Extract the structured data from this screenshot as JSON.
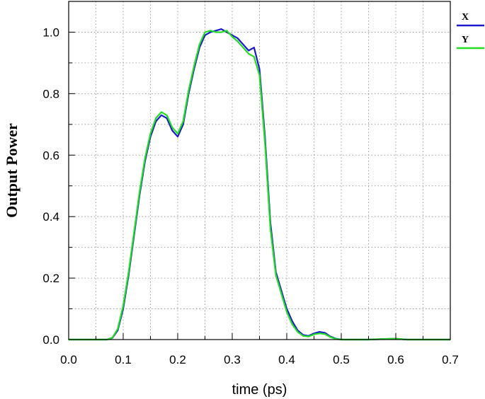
{
  "chart_data": {
    "type": "line",
    "title": "",
    "xlabel": "time (ps)",
    "ylabel": "Output Power",
    "xlim": [
      0,
      0.7
    ],
    "ylim": [
      0,
      1.1
    ],
    "grid": true,
    "legend_position": "top-right",
    "x_ticks": [
      "0.0",
      "0.1",
      "0.2",
      "0.3",
      "0.4",
      "0.5",
      "0.6",
      "0.7"
    ],
    "y_ticks": [
      "0.0",
      "0.2",
      "0.4",
      "0.6",
      "0.8",
      "1.0"
    ],
    "series": [
      {
        "name": "X",
        "color": "#1a1acc",
        "x": [
          0,
          0.07,
          0.08,
          0.09,
          0.1,
          0.11,
          0.12,
          0.13,
          0.14,
          0.15,
          0.16,
          0.17,
          0.18,
          0.19,
          0.2,
          0.21,
          0.22,
          0.23,
          0.24,
          0.25,
          0.26,
          0.27,
          0.28,
          0.29,
          0.3,
          0.31,
          0.32,
          0.33,
          0.34,
          0.35,
          0.36,
          0.37,
          0.38,
          0.39,
          0.4,
          0.41,
          0.42,
          0.43,
          0.44,
          0.45,
          0.46,
          0.47,
          0.48,
          0.49,
          0.5,
          0.51,
          0.55,
          0.58,
          0.6,
          0.62,
          0.65,
          0.7
        ],
        "y": [
          0.0,
          0.0,
          0.005,
          0.03,
          0.1,
          0.21,
          0.34,
          0.47,
          0.58,
          0.66,
          0.71,
          0.73,
          0.72,
          0.68,
          0.66,
          0.7,
          0.8,
          0.88,
          0.95,
          0.99,
          1.0,
          1.005,
          1.01,
          1.0,
          0.99,
          0.98,
          0.96,
          0.94,
          0.95,
          0.88,
          0.66,
          0.38,
          0.22,
          0.16,
          0.1,
          0.06,
          0.03,
          0.015,
          0.012,
          0.02,
          0.025,
          0.022,
          0.01,
          0.003,
          0.0,
          0.0,
          0.0,
          0.002,
          0.003,
          0.0,
          0.0,
          0.0
        ]
      },
      {
        "name": "Y",
        "color": "#22dd22",
        "x": [
          0,
          0.07,
          0.08,
          0.09,
          0.1,
          0.11,
          0.12,
          0.13,
          0.14,
          0.15,
          0.16,
          0.17,
          0.18,
          0.19,
          0.2,
          0.21,
          0.22,
          0.23,
          0.24,
          0.25,
          0.26,
          0.27,
          0.28,
          0.29,
          0.3,
          0.31,
          0.32,
          0.33,
          0.34,
          0.35,
          0.36,
          0.37,
          0.38,
          0.39,
          0.4,
          0.41,
          0.42,
          0.43,
          0.44,
          0.45,
          0.46,
          0.47,
          0.48,
          0.49,
          0.5,
          0.51,
          0.55,
          0.58,
          0.6,
          0.62,
          0.65,
          0.7
        ],
        "y": [
          0.0,
          0.0,
          0.006,
          0.035,
          0.11,
          0.22,
          0.35,
          0.48,
          0.59,
          0.67,
          0.72,
          0.74,
          0.73,
          0.69,
          0.67,
          0.71,
          0.81,
          0.89,
          0.96,
          1.0,
          1.005,
          1.0,
          1.0,
          1.005,
          0.985,
          0.97,
          0.95,
          0.93,
          0.92,
          0.86,
          0.64,
          0.36,
          0.21,
          0.15,
          0.09,
          0.05,
          0.025,
          0.012,
          0.01,
          0.017,
          0.02,
          0.018,
          0.008,
          0.002,
          0.0,
          0.0,
          0.0,
          0.002,
          0.003,
          0.0,
          0.0,
          0.0
        ]
      }
    ]
  }
}
